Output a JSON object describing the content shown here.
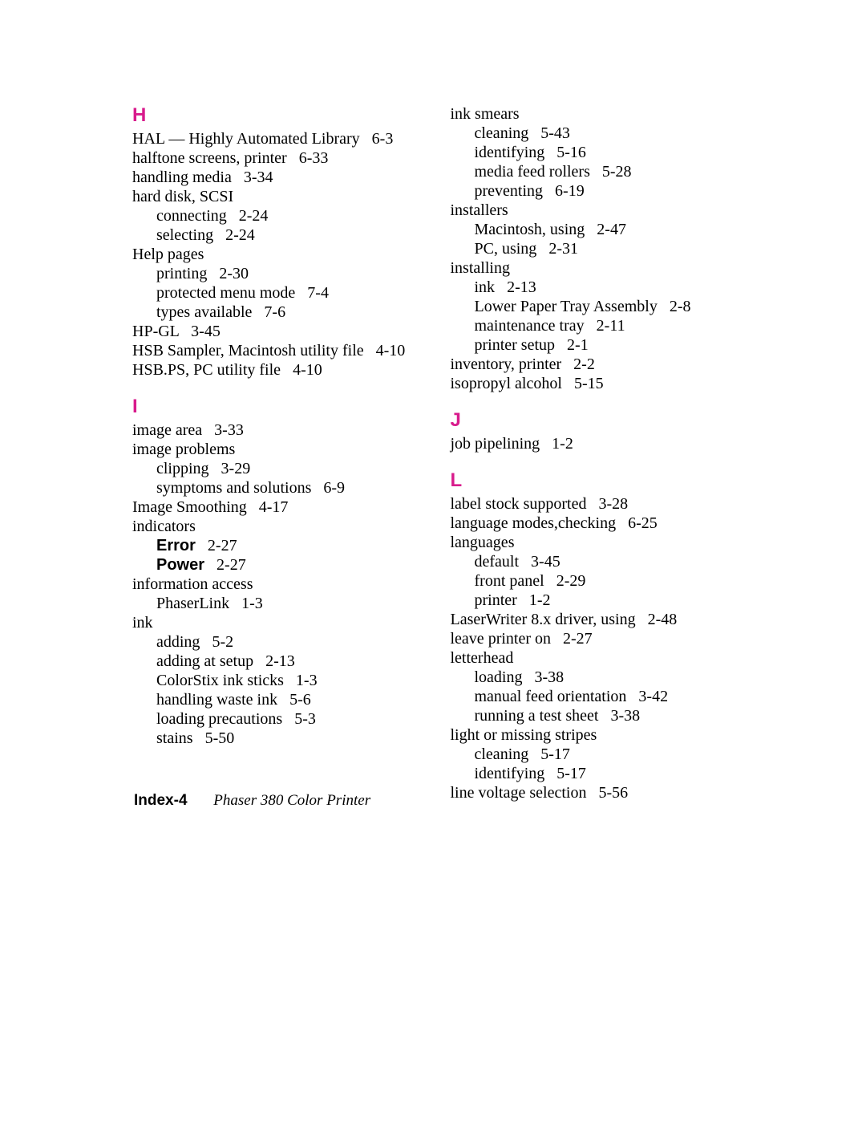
{
  "colors": {
    "heading": "#d81b8c",
    "text": "#000000",
    "background": "#ffffff"
  },
  "typography": {
    "body_font": "Palatino",
    "body_size_pt": 15,
    "heading_font": "Helvetica",
    "heading_size_pt": 18,
    "heading_weight": "bold"
  },
  "footer": {
    "page_label": "Index-4",
    "title": "Phaser 380 Color Printer"
  },
  "left": {
    "H": {
      "letter": "H",
      "entries": [
        {
          "l": 0,
          "t": "HAL — Highly Automated Library",
          "r": "6-3"
        },
        {
          "l": 0,
          "t": "halftone screens, printer",
          "r": "6-33"
        },
        {
          "l": 0,
          "t": "handling media",
          "r": "3-34"
        },
        {
          "l": 0,
          "t": "hard disk, SCSI",
          "r": ""
        },
        {
          "l": 1,
          "t": "connecting",
          "r": "2-24"
        },
        {
          "l": 1,
          "t": "selecting",
          "r": "2-24"
        },
        {
          "l": 0,
          "t": "Help pages",
          "r": ""
        },
        {
          "l": 1,
          "t": "printing",
          "r": "2-30"
        },
        {
          "l": 1,
          "t": "protected menu mode",
          "r": "7-4"
        },
        {
          "l": 1,
          "t": "types available",
          "r": "7-6"
        },
        {
          "l": 0,
          "t": "HP-GL",
          "r": "3-45"
        },
        {
          "l": 0,
          "t": "HSB Sampler, Macintosh utility file",
          "r": "4-10"
        },
        {
          "l": 0,
          "t": "HSB.PS, PC utility file",
          "r": "4-10"
        }
      ]
    },
    "I": {
      "letter": "I",
      "entries": [
        {
          "l": 0,
          "t": "image area",
          "r": "3-33"
        },
        {
          "l": 0,
          "t": "image problems",
          "r": ""
        },
        {
          "l": 1,
          "t": "clipping",
          "r": "3-29"
        },
        {
          "l": 1,
          "t": "symptoms and solutions",
          "r": "6-9"
        },
        {
          "l": 0,
          "t": "Image Smoothing",
          "r": "4-17"
        },
        {
          "l": 0,
          "t": "indicators",
          "r": ""
        },
        {
          "l": 1,
          "t": "Error",
          "r": "2-27",
          "bold": true
        },
        {
          "l": 1,
          "t": "Power",
          "r": "2-27",
          "bold": true
        },
        {
          "l": 0,
          "t": "information access",
          "r": ""
        },
        {
          "l": 1,
          "t": "PhaserLink",
          "r": "1-3"
        },
        {
          "l": 0,
          "t": "ink",
          "r": ""
        },
        {
          "l": 1,
          "t": "adding",
          "r": "5-2"
        },
        {
          "l": 1,
          "t": "adding at setup",
          "r": "2-13"
        },
        {
          "l": 1,
          "t": "ColorStix ink sticks",
          "r": "1-3"
        },
        {
          "l": 1,
          "t": "handling waste ink",
          "r": "5-6"
        },
        {
          "l": 1,
          "t": "loading precautions",
          "r": "5-3"
        },
        {
          "l": 1,
          "t": "stains",
          "r": "5-50"
        }
      ]
    }
  },
  "right": {
    "I_cont": {
      "entries": [
        {
          "l": 0,
          "t": "ink smears",
          "r": ""
        },
        {
          "l": 1,
          "t": "cleaning",
          "r": "5-43"
        },
        {
          "l": 1,
          "t": "identifying",
          "r": "5-16"
        },
        {
          "l": 1,
          "t": "media feed rollers",
          "r": "5-28"
        },
        {
          "l": 1,
          "t": "preventing",
          "r": "6-19"
        },
        {
          "l": 0,
          "t": "installers",
          "r": ""
        },
        {
          "l": 1,
          "t": "Macintosh, using",
          "r": "2-47"
        },
        {
          "l": 1,
          "t": "PC, using",
          "r": "2-31"
        },
        {
          "l": 0,
          "t": "installing",
          "r": ""
        },
        {
          "l": 1,
          "t": "ink",
          "r": "2-13"
        },
        {
          "l": 1,
          "t": "Lower Paper Tray Assembly",
          "r": "2-8"
        },
        {
          "l": 1,
          "t": "maintenance tray",
          "r": "2-11"
        },
        {
          "l": 1,
          "t": "printer setup",
          "r": "2-1"
        },
        {
          "l": 0,
          "t": "inventory, printer",
          "r": "2-2"
        },
        {
          "l": 0,
          "t": "isopropyl alcohol",
          "r": "5-15"
        }
      ]
    },
    "J": {
      "letter": "J",
      "entries": [
        {
          "l": 0,
          "t": "job pipelining",
          "r": "1-2"
        }
      ]
    },
    "L": {
      "letter": "L",
      "entries": [
        {
          "l": 0,
          "t": "label stock supported",
          "r": "3-28"
        },
        {
          "l": 0,
          "t": "language modes,checking",
          "r": "6-25"
        },
        {
          "l": 0,
          "t": "languages",
          "r": ""
        },
        {
          "l": 1,
          "t": "default",
          "r": "3-45"
        },
        {
          "l": 1,
          "t": "front panel",
          "r": "2-29"
        },
        {
          "l": 1,
          "t": "printer",
          "r": "1-2"
        },
        {
          "l": 0,
          "t": "LaserWriter 8.x driver, using",
          "r": "2-48"
        },
        {
          "l": 0,
          "t": "leave printer on",
          "r": "2-27"
        },
        {
          "l": 0,
          "t": "letterhead",
          "r": ""
        },
        {
          "l": 1,
          "t": "loading",
          "r": "3-38"
        },
        {
          "l": 1,
          "t": "manual feed orientation",
          "r": "3-42"
        },
        {
          "l": 1,
          "t": "running a test sheet",
          "r": "3-38"
        },
        {
          "l": 0,
          "t": "light or missing stripes",
          "r": ""
        },
        {
          "l": 1,
          "t": "cleaning",
          "r": "5-17"
        },
        {
          "l": 1,
          "t": "identifying",
          "r": "5-17"
        },
        {
          "l": 0,
          "t": "line voltage selection",
          "r": "5-56"
        }
      ]
    }
  }
}
